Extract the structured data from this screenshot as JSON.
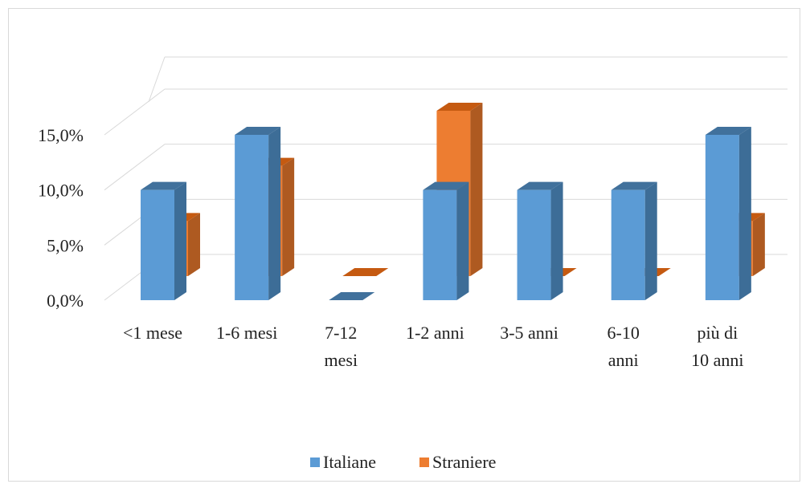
{
  "chart_data": {
    "type": "bar",
    "style": "3d-clustered-column",
    "categories": [
      [
        "<1 mese"
      ],
      [
        "1-6 mesi"
      ],
      [
        "7-12",
        "mesi"
      ],
      [
        "1-2 anni"
      ],
      [
        "3-5 anni"
      ],
      [
        "6-10",
        "anni"
      ],
      [
        "più di",
        "10 anni"
      ]
    ],
    "series": [
      {
        "name": "Italiane",
        "color": "#5b9bd5",
        "side_color": "#3d6d97",
        "top_color": "#41719c",
        "values": [
          10.0,
          15.0,
          0.0,
          10.0,
          10.0,
          10.0,
          15.0
        ]
      },
      {
        "name": "Straniere",
        "color": "#ed7d31",
        "side_color": "#ae5a21",
        "top_color": "#c55a11",
        "values": [
          5.0,
          10.0,
          0.0,
          15.0,
          0.0,
          0.0,
          5.0
        ]
      }
    ],
    "y_ticks": [
      "0,0%",
      "5,0%",
      "10,0%",
      "15,0%"
    ],
    "ylim": [
      0,
      15
    ],
    "title": "",
    "xlabel": "",
    "ylabel": "",
    "grid": true,
    "legend_position": "bottom"
  }
}
